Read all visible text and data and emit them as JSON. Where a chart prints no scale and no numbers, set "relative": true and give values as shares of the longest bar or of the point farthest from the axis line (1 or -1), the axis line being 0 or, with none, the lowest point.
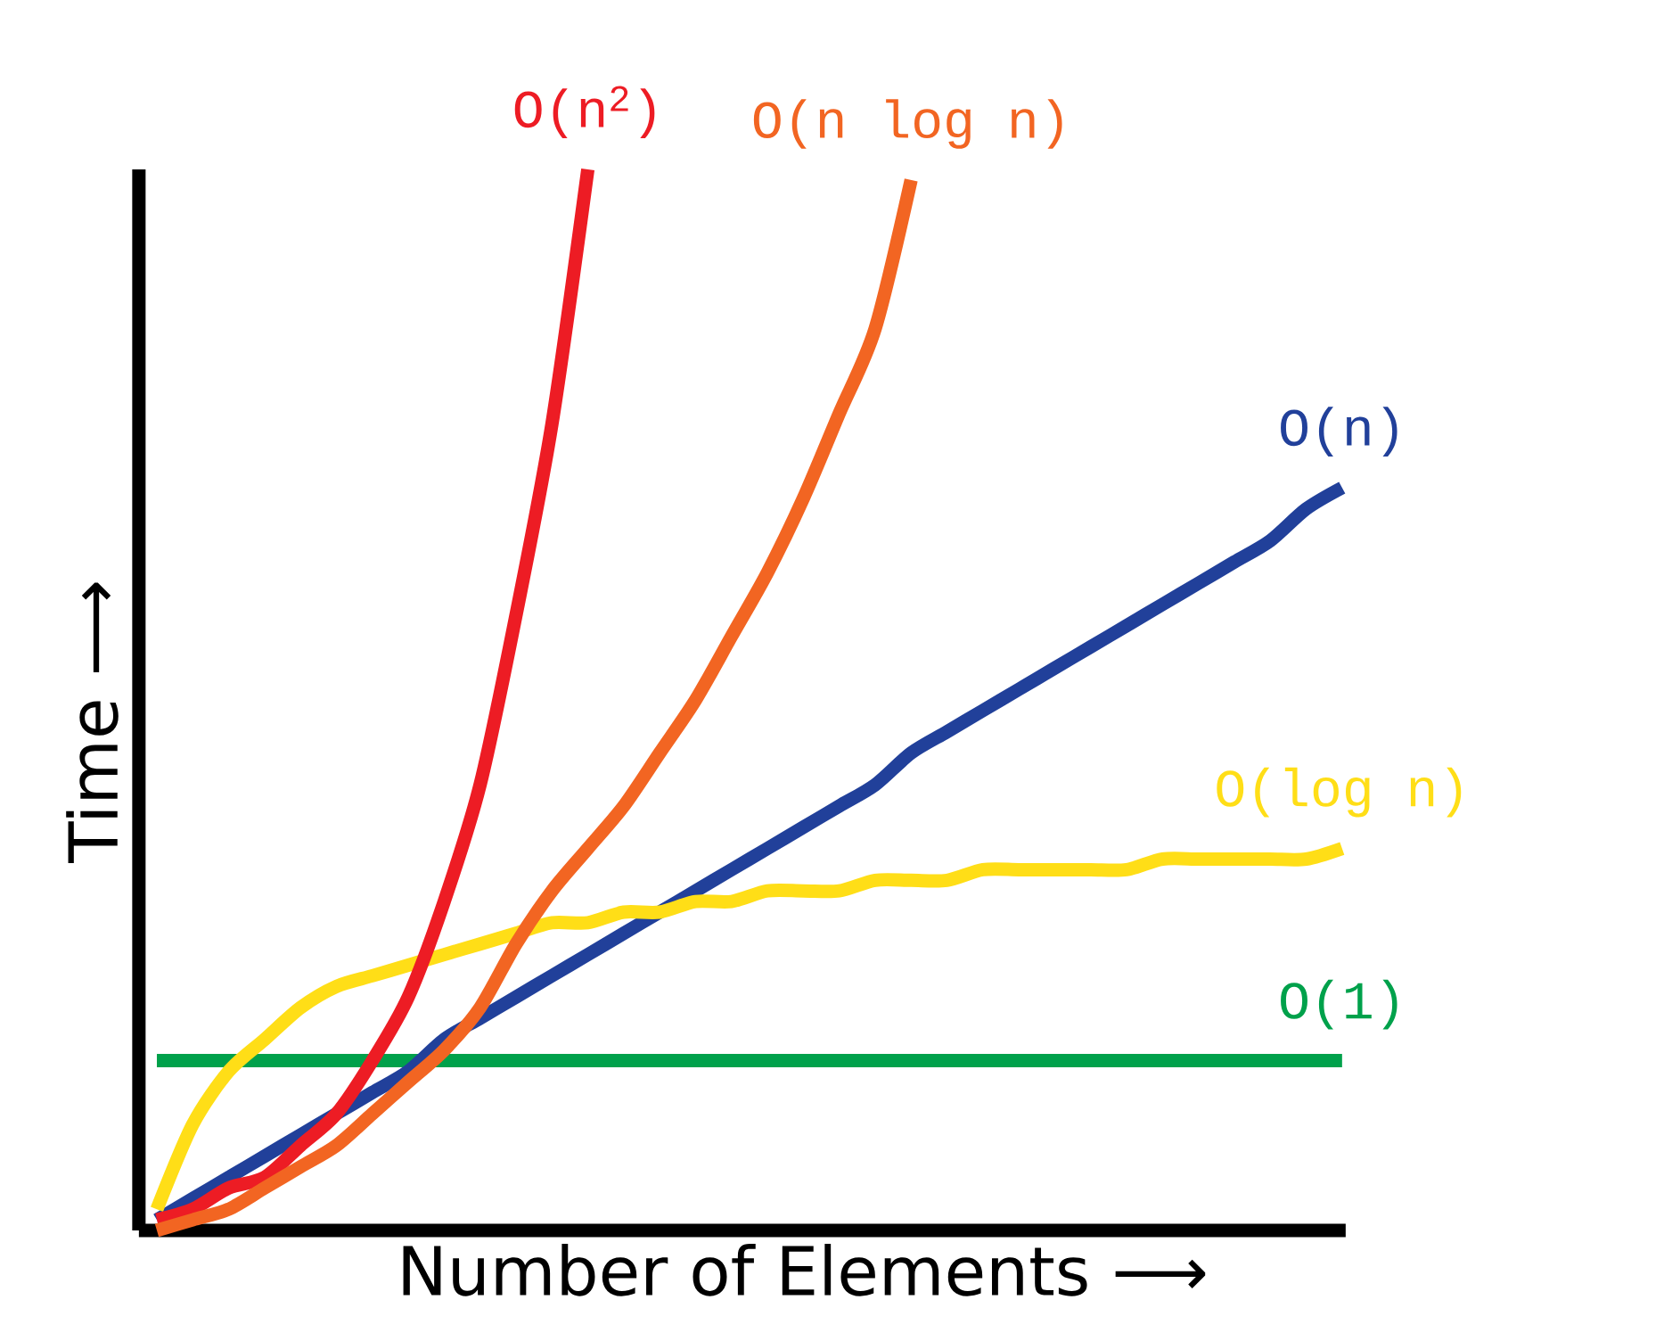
{
  "chart_data": {
    "type": "line",
    "relative": true,
    "xlabel": "Number of Elements ⟶",
    "ylabel": "Time ⟶",
    "categories": [
      null,
      null,
      null,
      null,
      null,
      null,
      null,
      null,
      null,
      null,
      null,
      null,
      null,
      null,
      null,
      null,
      null,
      null,
      null,
      null,
      null,
      null,
      null,
      null,
      null,
      null,
      null,
      null,
      null,
      null,
      null,
      null,
      null,
      null
    ],
    "series": [
      {
        "name": "O(1)",
        "color": "#00a14b",
        "values": [
          0.16,
          0.16,
          0.16,
          0.16,
          0.16,
          0.16,
          0.16,
          0.16,
          0.16,
          0.16,
          0.16,
          0.16,
          0.16,
          0.16,
          0.16,
          0.16,
          0.16,
          0.16,
          0.16,
          0.16,
          0.16,
          0.16,
          0.16,
          0.16,
          0.16,
          0.16,
          0.16,
          0.16,
          0.16,
          0.16,
          0.16,
          0.16,
          0.16,
          0.16
        ]
      },
      {
        "name": "O(n)",
        "color": "#21409a",
        "values": [
          0.01,
          0.03,
          0.05,
          0.07,
          0.09,
          0.11,
          0.13,
          0.15,
          0.18,
          0.2,
          0.22,
          0.24,
          0.26,
          0.28,
          0.3,
          0.32,
          0.34,
          0.36,
          0.38,
          0.4,
          0.42,
          0.45,
          0.47,
          0.49,
          0.51,
          0.53,
          0.55,
          0.57,
          0.59,
          0.61,
          0.63,
          0.65,
          0.68,
          0.7
        ]
      },
      {
        "name": "O(log n)",
        "color": "#ffde17",
        "values": [
          0.02,
          0.1,
          0.15,
          0.18,
          0.21,
          0.23,
          0.24,
          0.25,
          0.26,
          0.27,
          0.28,
          0.29,
          0.29,
          0.3,
          0.3,
          0.31,
          0.31,
          0.32,
          0.32,
          0.32,
          0.33,
          0.33,
          0.33,
          0.34,
          0.34,
          0.34,
          0.34,
          0.34,
          0.35,
          0.35,
          0.35,
          0.35,
          0.35,
          0.36
        ]
      },
      {
        "name": "O(n$^{2}$)",
        "color": "#ed1c24",
        "values": [
          0.01,
          0.02,
          0.04,
          0.05,
          0.08,
          0.11,
          0.16,
          0.22,
          0.31,
          0.42,
          0.58,
          0.76,
          1.0,
          null,
          null,
          null,
          null,
          null,
          null,
          null,
          null,
          null,
          null,
          null,
          null,
          null,
          null,
          null,
          null,
          null,
          null,
          null,
          null,
          null
        ]
      },
      {
        "name": "O(n log n)",
        "color": "#f26522",
        "values": [
          0.0,
          0.01,
          0.02,
          0.04,
          0.06,
          0.08,
          0.11,
          0.14,
          0.17,
          0.21,
          0.27,
          0.32,
          0.36,
          0.4,
          0.45,
          0.5,
          0.56,
          0.62,
          0.69,
          0.77,
          0.85,
          0.99,
          null,
          null,
          null,
          null,
          null,
          null,
          null,
          null,
          null,
          null,
          null,
          null
        ]
      }
    ]
  }
}
